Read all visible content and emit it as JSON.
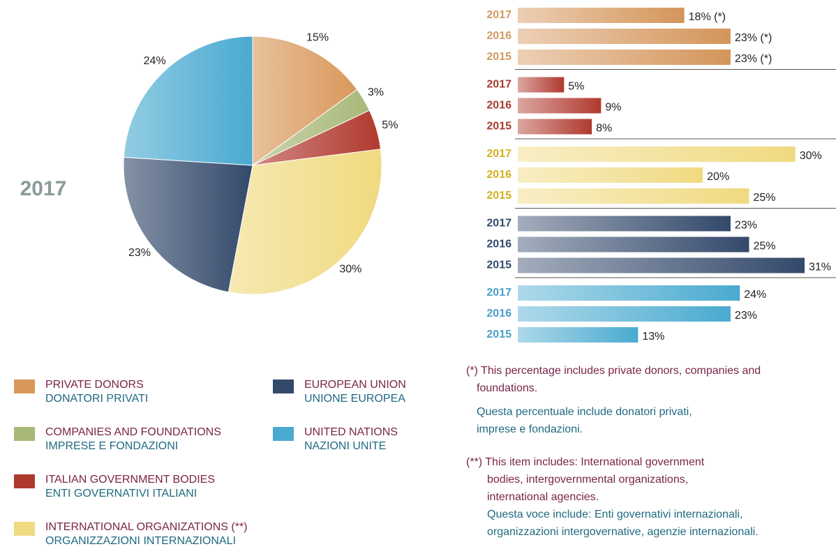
{
  "chart_data": [
    {
      "type": "pie",
      "title": "2017",
      "categories": [
        "PRIVATE DONORS",
        "COMPANIES AND FOUNDATIONS",
        "ITALIAN GOVERNMENT BODIES",
        "INTERNATIONAL ORGANIZATIONS (**)",
        "EUROPEAN UNION",
        "UNITED NATIONS"
      ],
      "categories_it": [
        "DONATORI PRIVATI",
        "IMPRESE E FONDAZIONI",
        "ENTI GOVERNATIVI ITALIANI",
        "ORGANIZZAZIONI INTERNAZIONALI",
        "UNIONE EUROPEA",
        "NAZIONI UNITE"
      ],
      "values": [
        15,
        3,
        5,
        30,
        23,
        24
      ],
      "value_labels": [
        "15%",
        "3%",
        "5%",
        "30%",
        "23%",
        "24%"
      ],
      "colors": [
        "#d9985a",
        "#a8b878",
        "#b0392e",
        "#f0da80",
        "#33496b",
        "#4aaad0"
      ]
    },
    {
      "type": "bar",
      "categories": [
        "2017",
        "2016",
        "2015"
      ],
      "xlim": [
        0,
        31
      ],
      "series": [
        {
          "color": "#d4955a",
          "label_color": "#d09a60",
          "values": [
            18,
            23,
            23
          ],
          "value_labels": [
            "18% (*)",
            "23% (*)",
            "23% (*)"
          ]
        },
        {
          "color": "#b0392e",
          "label_color": "#a83a30",
          "values": [
            5,
            9,
            8
          ],
          "value_labels": [
            "5%",
            "9%",
            "8%"
          ]
        },
        {
          "color": "#f0da80",
          "label_color": "#d4b020",
          "values": [
            30,
            20,
            25
          ],
          "value_labels": [
            "30%",
            "20%",
            "25%"
          ]
        },
        {
          "color": "#33496b",
          "label_color": "#33496b",
          "values": [
            23,
            25,
            31
          ],
          "value_labels": [
            "23%",
            "25%",
            "31%"
          ]
        },
        {
          "color": "#4aaad0",
          "label_color": "#4ba0c8",
          "values": [
            24,
            23,
            13
          ],
          "value_labels": [
            "24%",
            "23%",
            "13%"
          ]
        }
      ]
    }
  ],
  "notes": [
    {
      "en": [
        "(*) This percentage includes private donors, companies and",
        "foundations."
      ],
      "it": [
        "Questa percentuale include donatori privati,",
        "imprese e fondazioni."
      ]
    },
    {
      "en": [
        "(**) This item includes: International government",
        "bodies, intergovernmental organizations,",
        "international agencies."
      ],
      "it": [
        "Questa voce include: Enti governativi internazionali,",
        "organizzazioni intergovernative, agenzie internazionali."
      ]
    }
  ]
}
